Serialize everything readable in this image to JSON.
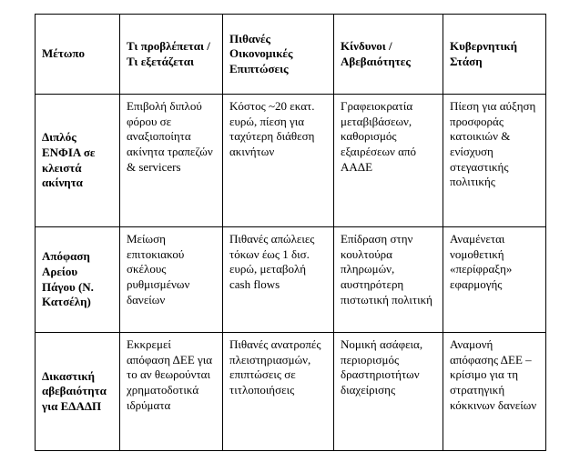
{
  "table": {
    "headers": [
      "Μέτωπο",
      "Τι προβλέπεται / Τι εξετάζεται",
      "Πιθανές Οικονομικές Επιπτώσεις",
      "Κίνδυνοι / Αβεβαιότητες",
      "Κυβερνητική Στάση"
    ],
    "rows": [
      [
        "Διπλός ΕΝΦΙΑ σε κλειστά ακίνητα",
        "Επιβολή διπλού φόρου σε αναξιοποίητα ακίνητα τραπεζών & servicers",
        "Κόστος ~20 εκατ. ευρώ, πίεση για ταχύτερη διάθεση ακινήτων",
        "Γραφειοκρατία μεταβιβάσεων, καθορισμός εξαιρέσεων από ΑΑΔΕ",
        "Πίεση για αύξηση προσφοράς κατοικιών & ενίσχυση στεγαστικής πολιτικής"
      ],
      [
        "Απόφαση Αρείου Πάγου (Ν. Κατσέλη)",
        "Μείωση επιτοκιακού σκέλους ρυθμισμένων δανείων",
        "Πιθανές απώλειες τόκων έως 1 δισ. ευρώ, μεταβολή cash flows",
        "Επίδραση στην κουλτούρα πληρωμών, αυστηρότερη πιστωτική πολιτική",
        "Αναμένεται νομοθετική «περίφραξη» εφαρμογής"
      ],
      [
        "Δικαστική αβεβαιότητα για ΕΔΑΔΠ",
        "Εκκρεμεί απόφαση ΔΕΕ για το αν θεωρούνται χρηματοδοτικά ιδρύματα",
        "Πιθανές ανατροπές πλειστηριασμών, επιπτώσεις σε τιτλοποιήσεις",
        "Νομική ασάφεια, περιορισμός δραστηριοτήτων διαχείρισης",
        "Αναμονή απόφασης ΔΕΕ – κρίσιμο για τη στρατηγική κόκκινων δανείων"
      ]
    ]
  }
}
